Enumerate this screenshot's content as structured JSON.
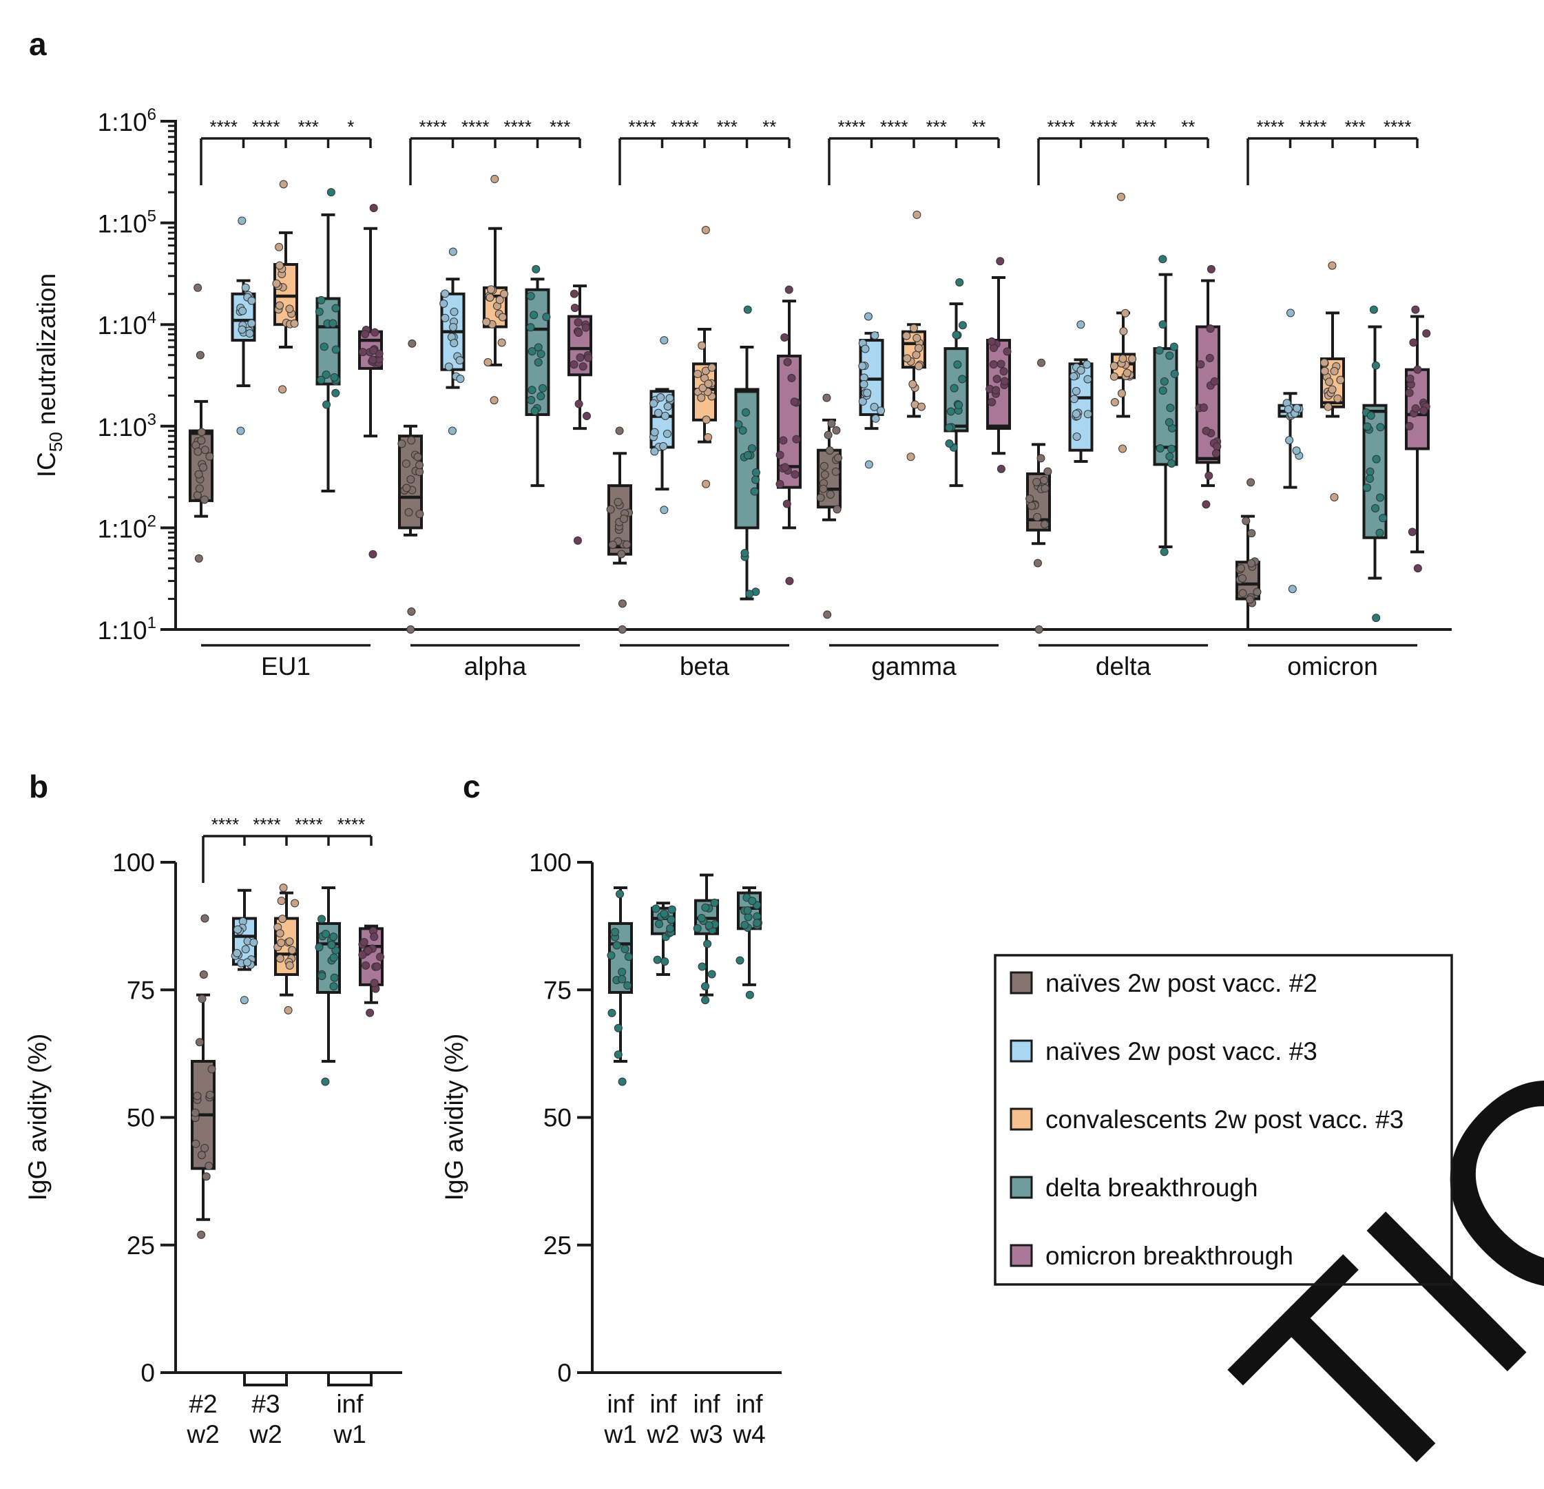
{
  "figure": {
    "panel_labels": [
      "a",
      "b",
      "c"
    ],
    "watermark": "TICL"
  },
  "colors": {
    "g0": "#857470",
    "g1": "#a9d7f2",
    "g2": "#f7c08f",
    "g3": "#6f9d9d",
    "g4": "#a97898",
    "dot0": "#7d6e6a",
    "dot1": "#8fb8cf",
    "dot2": "#c9a387",
    "dot3": "#2c7a74",
    "dot4": "#6b3f5a",
    "axis": "#1a1a1a",
    "watermark": "#d9d9d9"
  },
  "legend": {
    "entries": [
      {
        "label": "naïves 2w post vacc. #2",
        "color": "g0"
      },
      {
        "label": "naïves 2w post vacc. #3",
        "color": "g1"
      },
      {
        "label": "convalescents 2w post vacc. #3",
        "color": "g2"
      },
      {
        "label": "delta breakthrough",
        "color": "g3"
      },
      {
        "label": "omicron breakthrough",
        "color": "g4"
      }
    ]
  },
  "chart_data": [
    {
      "panel": "a",
      "type": "box",
      "scale": "log10",
      "ylabel_main": "IC",
      "ylabel_sub": "50",
      "ylabel_rest": " neutralization",
      "ylim_exp": [
        1,
        6
      ],
      "yticks": [
        {
          "base": "1:10",
          "exp": "1"
        },
        {
          "base": "1:10",
          "exp": "2"
        },
        {
          "base": "1:10",
          "exp": "3"
        },
        {
          "base": "1:10",
          "exp": "4"
        },
        {
          "base": "1:10",
          "exp": "5"
        },
        {
          "base": "1:10",
          "exp": "6"
        }
      ],
      "variants": [
        {
          "label": "EU1",
          "sig": [
            "****",
            "****",
            "***",
            "*"
          ],
          "boxes": [
            {
              "min": 130,
              "q1": 185,
              "med": 850,
              "q3": 900,
              "max": 1750,
              "outliers": [
                50,
                5000,
                23000
              ]
            },
            {
              "min": 2500,
              "q1": 7000,
              "med": 11000,
              "q3": 20000,
              "max": 27000,
              "outliers": [
                900,
                105000
              ]
            },
            {
              "min": 6000,
              "q1": 10000,
              "med": 19000,
              "q3": 39000,
              "max": 80000,
              "outliers": [
                2300,
                240000
              ]
            },
            {
              "min": 230,
              "q1": 2600,
              "med": 9500,
              "q3": 18000,
              "max": 120000,
              "outliers": [
                200000
              ]
            },
            {
              "min": 800,
              "q1": 3700,
              "med": 7000,
              "q3": 8500,
              "max": 88000,
              "outliers": [
                55,
                140000
              ]
            }
          ]
        },
        {
          "label": "alpha",
          "sig": [
            "****",
            "****",
            "****",
            "***"
          ],
          "boxes": [
            {
              "min": 85,
              "q1": 100,
              "med": 200,
              "q3": 800,
              "max": 1000,
              "outliers": [
                10,
                15,
                6500
              ]
            },
            {
              "min": 2400,
              "q1": 3600,
              "med": 8500,
              "q3": 20000,
              "max": 28000,
              "outliers": [
                900,
                52000
              ]
            },
            {
              "min": 4000,
              "q1": 9500,
              "med": 19000,
              "q3": 23000,
              "max": 88000,
              "outliers": [
                1800,
                270000
              ]
            },
            {
              "min": 260,
              "q1": 1300,
              "med": 9000,
              "q3": 22000,
              "max": 28000,
              "outliers": [
                35000
              ]
            },
            {
              "min": 950,
              "q1": 3200,
              "med": 5800,
              "q3": 12000,
              "max": 24000,
              "outliers": [
                75
              ]
            }
          ]
        },
        {
          "label": "beta",
          "sig": [
            "****",
            "****",
            "***",
            "**"
          ],
          "boxes": [
            {
              "min": 45,
              "q1": 55,
              "med": 65,
              "q3": 260,
              "max": 540,
              "outliers": [
                10,
                18,
                900
              ]
            },
            {
              "min": 240,
              "q1": 620,
              "med": 1250,
              "q3": 2200,
              "max": 2300,
              "outliers": [
                150,
                7000
              ]
            },
            {
              "min": 700,
              "q1": 1150,
              "med": 2300,
              "q3": 4100,
              "max": 9000,
              "outliers": [
                270,
                85000
              ]
            },
            {
              "min": 20,
              "q1": 100,
              "med": 2200,
              "q3": 2300,
              "max": 6000,
              "outliers": [
                14000
              ]
            },
            {
              "min": 100,
              "q1": 250,
              "med": 400,
              "q3": 4900,
              "max": 17000,
              "outliers": [
                30,
                22000
              ]
            }
          ]
        },
        {
          "label": "gamma",
          "sig": [
            "****",
            "****",
            "***",
            "**"
          ],
          "boxes": [
            {
              "min": 120,
              "q1": 160,
              "med": 240,
              "q3": 580,
              "max": 1150,
              "outliers": [
                14,
                1900
              ]
            },
            {
              "min": 950,
              "q1": 1300,
              "med": 2900,
              "q3": 7000,
              "max": 8200,
              "outliers": [
                420,
                12000
              ]
            },
            {
              "min": 1250,
              "q1": 3800,
              "med": 6500,
              "q3": 8500,
              "max": 10000,
              "outliers": [
                500,
                120000
              ]
            },
            {
              "min": 260,
              "q1": 900,
              "med": 1000,
              "q3": 5800,
              "max": 16000,
              "outliers": [
                26000
              ]
            },
            {
              "min": 540,
              "q1": 950,
              "med": 1000,
              "q3": 7000,
              "max": 29000,
              "outliers": [
                380,
                42000
              ]
            }
          ]
        },
        {
          "label": "delta",
          "sig": [
            "****",
            "****",
            "***",
            "**"
          ],
          "boxes": [
            {
              "min": 70,
              "q1": 95,
              "med": 120,
              "q3": 340,
              "max": 660,
              "outliers": [
                10,
                45,
                4200
              ]
            },
            {
              "min": 450,
              "q1": 580,
              "med": 1900,
              "q3": 4100,
              "max": 4500,
              "outliers": [
                10000
              ]
            },
            {
              "min": 1250,
              "q1": 3000,
              "med": 4100,
              "q3": 5100,
              "max": 13000,
              "outliers": [
                600,
                180000
              ]
            },
            {
              "min": 65,
              "q1": 420,
              "med": 620,
              "q3": 5800,
              "max": 31000,
              "outliers": [
                58,
                44000
              ]
            },
            {
              "min": 260,
              "q1": 440,
              "med": 480,
              "q3": 9500,
              "max": 27000,
              "outliers": [
                170,
                35000
              ]
            }
          ]
        },
        {
          "label": "omicron",
          "sig": [
            "****",
            "****",
            "***",
            "****"
          ],
          "boxes": [
            {
              "min": 10,
              "q1": 20,
              "med": 28,
              "q3": 46,
              "max": 130,
              "outliers": [
                280
              ]
            },
            {
              "min": 250,
              "q1": 1250,
              "med": 1400,
              "q3": 1600,
              "max": 2100,
              "outliers": [
                25,
                13000
              ]
            },
            {
              "min": 1250,
              "q1": 1550,
              "med": 1700,
              "q3": 4600,
              "max": 13000,
              "outliers": [
                200,
                38000
              ]
            },
            {
              "min": 32,
              "q1": 80,
              "med": 1400,
              "q3": 1600,
              "max": 9500,
              "outliers": [
                13,
                14000
              ]
            },
            {
              "min": 58,
              "q1": 600,
              "med": 1300,
              "q3": 3600,
              "max": 12000,
              "outliers": [
                40,
                14000
              ]
            }
          ]
        }
      ]
    },
    {
      "panel": "b",
      "type": "box",
      "ylabel": "IgG avidity (%)",
      "ylim": [
        0,
        100
      ],
      "yticks": [
        "0",
        "25",
        "50",
        "75",
        "100"
      ],
      "sig": [
        "****",
        "****",
        "****",
        "****"
      ],
      "xlabels": [
        {
          "l1": "#2",
          "l2": "w2"
        },
        {
          "l1": "#3",
          "l2": "w2"
        },
        {
          "l1": "inf",
          "l2": "w1"
        }
      ],
      "boxes": [
        {
          "group": 0,
          "min": 30,
          "q1": 40,
          "med": 50.5,
          "q3": 61,
          "max": 74,
          "outliers": [
            27,
            78,
            89
          ]
        },
        {
          "group": 1,
          "min": 79,
          "q1": 80,
          "med": 85.5,
          "q3": 89,
          "max": 94.5,
          "outliers": [
            73
          ]
        },
        {
          "group": 2,
          "min": 74,
          "q1": 78,
          "med": 82,
          "q3": 89,
          "max": 94,
          "outliers": [
            71,
            95
          ]
        },
        {
          "group": 3,
          "min": 61,
          "q1": 74.5,
          "med": 84,
          "q3": 88,
          "max": 95,
          "outliers": [
            57
          ]
        },
        {
          "group": 4,
          "min": 72.5,
          "q1": 76,
          "med": 83.5,
          "q3": 87,
          "max": 87.5,
          "outliers": [
            70.5
          ]
        }
      ]
    },
    {
      "panel": "c",
      "type": "box",
      "ylabel": "IgG avidity (%)",
      "ylim": [
        0,
        100
      ],
      "yticks": [
        "0",
        "25",
        "50",
        "75",
        "100"
      ],
      "xlabels": [
        {
          "l1": "inf",
          "l2": "w1"
        },
        {
          "l1": "inf",
          "l2": "w2"
        },
        {
          "l1": "inf",
          "l2": "w3"
        },
        {
          "l1": "inf",
          "l2": "w4"
        }
      ],
      "boxes": [
        {
          "group": 3,
          "min": 61,
          "q1": 74.5,
          "med": 84,
          "q3": 88,
          "max": 95,
          "outliers": [
            57
          ]
        },
        {
          "group": 3,
          "min": 78,
          "q1": 86,
          "med": 89,
          "q3": 91,
          "max": 92,
          "outliers": []
        },
        {
          "group": 3,
          "min": 74,
          "q1": 86,
          "med": 89,
          "q3": 92.5,
          "max": 97.5,
          "outliers": [
            73
          ]
        },
        {
          "group": 3,
          "min": 76,
          "q1": 87,
          "med": 91,
          "q3": 94,
          "max": 95,
          "outliers": [
            74
          ]
        }
      ]
    }
  ]
}
